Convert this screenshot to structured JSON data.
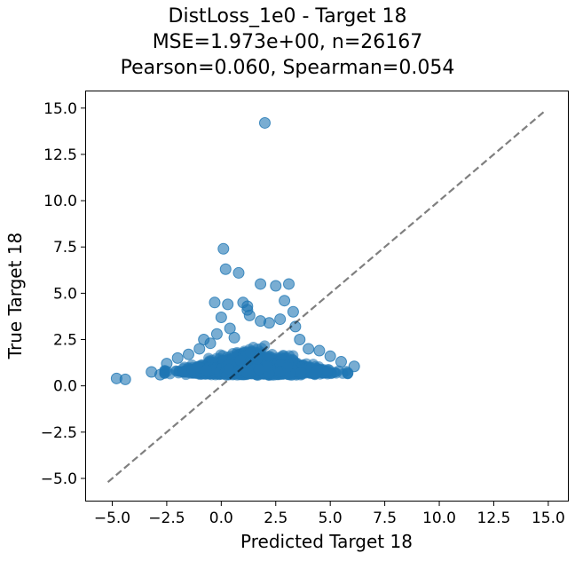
{
  "chart_data": {
    "type": "scatter",
    "title_lines": [
      "DistLoss_1e0 - Target 18",
      "MSE=1.973e+00, n=26167",
      "Pearson=0.060, Spearman=0.054"
    ],
    "xlabel": "Predicted Target 18",
    "ylabel": "True Target 18",
    "xlim": [
      -6.2,
      15.9
    ],
    "ylim": [
      -6.2,
      15.9
    ],
    "x_ticks": [
      -5.0,
      -2.5,
      0.0,
      2.5,
      5.0,
      7.5,
      10.0,
      12.5,
      15.0
    ],
    "x_tick_labels": [
      "−5.0",
      "−2.5",
      "0.0",
      "2.5",
      "5.0",
      "7.5",
      "10.0",
      "12.5",
      "15.0"
    ],
    "y_ticks": [
      -5.0,
      -2.5,
      0.0,
      2.5,
      5.0,
      7.5,
      10.0,
      12.5,
      15.0
    ],
    "y_tick_labels": [
      "−5.0",
      "−2.5",
      "0.0",
      "2.5",
      "5.0",
      "7.5",
      "10.0",
      "12.5",
      "15.0"
    ],
    "grid": false,
    "point_color": "#1f77b4",
    "point_alpha": 0.6,
    "reference_line": {
      "x": [
        -5.2,
        14.8
      ],
      "y": [
        -5.2,
        14.8
      ],
      "style": "dashed",
      "color": "#000000",
      "alpha": 0.5
    },
    "points": [
      [
        2.0,
        14.2
      ],
      [
        0.1,
        7.4
      ],
      [
        0.2,
        6.3
      ],
      [
        0.8,
        6.1
      ],
      [
        1.8,
        5.5
      ],
      [
        2.5,
        5.4
      ],
      [
        3.1,
        5.5
      ],
      [
        -0.3,
        4.5
      ],
      [
        0.3,
        4.4
      ],
      [
        1.0,
        4.5
      ],
      [
        2.9,
        4.6
      ],
      [
        1.2,
        4.1
      ],
      [
        1.2,
        4.3
      ],
      [
        3.3,
        4.0
      ],
      [
        0.0,
        3.7
      ],
      [
        1.3,
        3.8
      ],
      [
        2.7,
        3.6
      ],
      [
        1.8,
        3.5
      ],
      [
        2.2,
        3.4
      ],
      [
        -4.8,
        0.4
      ],
      [
        -4.4,
        0.35
      ],
      [
        -3.2,
        0.75
      ],
      [
        -2.8,
        0.6
      ],
      [
        5.8,
        0.7
      ],
      [
        6.1,
        1.05
      ],
      [
        5.5,
        1.3
      ],
      [
        -2.5,
        1.2
      ],
      [
        -2.0,
        1.5
      ],
      [
        -1.5,
        1.7
      ],
      [
        -1.0,
        2.0
      ],
      [
        -0.5,
        2.3
      ],
      [
        -0.2,
        2.8
      ],
      [
        0.4,
        3.1
      ],
      [
        4.5,
        1.9
      ],
      [
        4.0,
        2.0
      ],
      [
        3.6,
        2.5
      ],
      [
        5.0,
        1.6
      ],
      [
        -0.8,
        2.5
      ],
      [
        0.6,
        2.6
      ],
      [
        3.4,
        3.2
      ]
    ],
    "dense_cluster": {
      "x_range": [
        -2.6,
        5.8
      ],
      "y_range": [
        0.4,
        2.2
      ],
      "center": [
        1.5,
        0.95
      ],
      "sample_count": 2600
    }
  }
}
